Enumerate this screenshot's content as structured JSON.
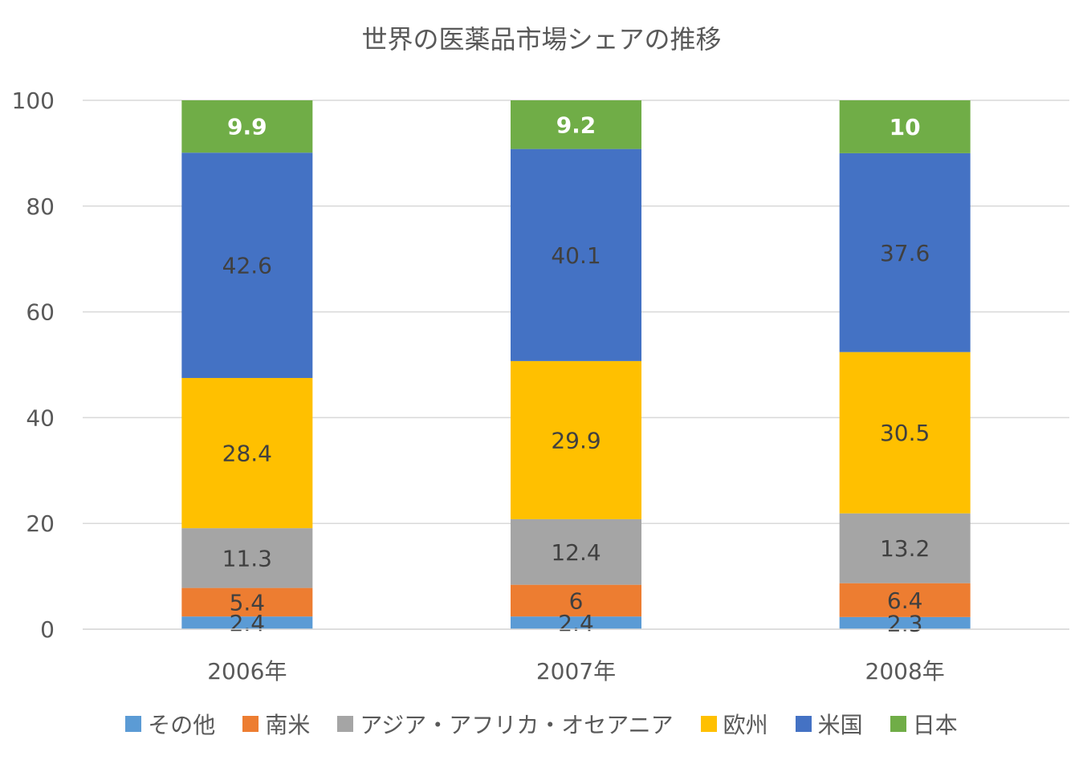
{
  "chart_data": {
    "type": "bar",
    "stacked": true,
    "title": "世界の医薬品市場シェアの推移",
    "categories": [
      "2006年",
      "2007年",
      "2008年"
    ],
    "ylim": [
      0,
      100
    ],
    "yticks": [
      0,
      20,
      40,
      60,
      80,
      100
    ],
    "grid": true,
    "legend_position": "bottom",
    "series": [
      {
        "name": "その他",
        "color": "#5B9BD5",
        "label_color": "#404040",
        "label_bold": false,
        "values": [
          2.4,
          2.4,
          2.3
        ],
        "labels": [
          "2.4",
          "2.4",
          "2.3"
        ]
      },
      {
        "name": "南米",
        "color": "#ED7D31",
        "label_color": "#404040",
        "label_bold": false,
        "values": [
          5.4,
          6,
          6.4
        ],
        "labels": [
          "5.4",
          "6",
          "6.4"
        ]
      },
      {
        "name": "アジア・アフリカ・オセアニア",
        "color": "#A5A5A5",
        "label_color": "#404040",
        "label_bold": false,
        "values": [
          11.3,
          12.4,
          13.2
        ],
        "labels": [
          "11.3",
          "12.4",
          "13.2"
        ]
      },
      {
        "name": "欧州",
        "color": "#FFC000",
        "label_color": "#404040",
        "label_bold": false,
        "values": [
          28.4,
          29.9,
          30.5
        ],
        "labels": [
          "28.4",
          "29.9",
          "30.5"
        ]
      },
      {
        "name": "米国",
        "color": "#4472C4",
        "label_color": "#404040",
        "label_bold": false,
        "values": [
          42.6,
          40.1,
          37.6
        ],
        "labels": [
          "42.6",
          "40.1",
          "37.6"
        ]
      },
      {
        "name": "日本",
        "color": "#70AD47",
        "label_color": "#FFFFFF",
        "label_bold": true,
        "values": [
          9.9,
          9.2,
          10
        ],
        "labels": [
          "9.9",
          "9.2",
          "10"
        ]
      }
    ]
  }
}
